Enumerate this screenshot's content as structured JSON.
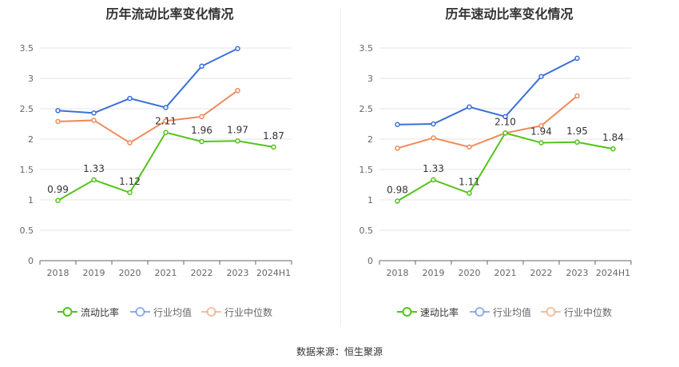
{
  "source": "数据来源：恒生聚源",
  "chart_data": [
    {
      "type": "line",
      "title": "历年流动比率变化情况",
      "categories": [
        "2018",
        "2019",
        "2020",
        "2021",
        "2022",
        "2023",
        "2024H1"
      ],
      "yticks": [
        "0",
        "0.5",
        "1",
        "1.5",
        "2",
        "2.5",
        "3",
        "3.5"
      ],
      "ylim": [
        0,
        3.5
      ],
      "grid": true,
      "legend_position": "bottom",
      "series": [
        {
          "name": "流动比率",
          "color": "#52c41a",
          "labels": true,
          "values": [
            0.99,
            1.33,
            1.12,
            2.11,
            1.96,
            1.97,
            1.87
          ]
        },
        {
          "name": "行业均值",
          "color": "#3b6fd9",
          "labels": false,
          "values": [
            2.47,
            2.43,
            2.67,
            2.52,
            3.2,
            3.49,
            null
          ]
        },
        {
          "name": "行业中位数",
          "color": "#ef8a5a",
          "labels": false,
          "values": [
            2.29,
            2.31,
            1.94,
            2.3,
            2.37,
            2.8,
            null
          ]
        }
      ]
    },
    {
      "type": "line",
      "title": "历年速动比率变化情况",
      "categories": [
        "2018",
        "2019",
        "2020",
        "2021",
        "2022",
        "2023",
        "2024H1"
      ],
      "yticks": [
        "0",
        "0.5",
        "1",
        "1.5",
        "2",
        "2.5",
        "3",
        "3.5"
      ],
      "ylim": [
        0,
        3.5
      ],
      "grid": true,
      "legend_position": "bottom",
      "series": [
        {
          "name": "速动比率",
          "color": "#52c41a",
          "labels": true,
          "values": [
            0.98,
            1.33,
            1.11,
            2.1,
            1.94,
            1.95,
            1.84
          ]
        },
        {
          "name": "行业均值",
          "color": "#3b6fd9",
          "labels": false,
          "values": [
            2.24,
            2.25,
            2.53,
            2.37,
            3.03,
            3.33,
            null
          ]
        },
        {
          "name": "行业中位数",
          "color": "#ef8a5a",
          "labels": false,
          "values": [
            1.85,
            2.02,
            1.87,
            2.1,
            2.22,
            2.71,
            null
          ]
        }
      ]
    }
  ]
}
